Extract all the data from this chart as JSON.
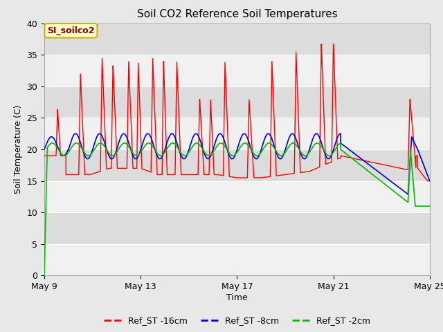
{
  "title": "Soil CO2 Reference Soil Temperatures",
  "xlabel": "Time",
  "ylabel": "Soil Temperature (C)",
  "ylim": [
    0,
    40
  ],
  "xlim_days": [
    0,
    16
  ],
  "fig_bg": "#e8e8e8",
  "plot_bg_dark": "#dcdcdc",
  "plot_bg_light": "#f0f0f0",
  "grid_color": "#ffffff",
  "annotation_label": "SI_soilco2",
  "annotation_color": "#8b0000",
  "annotation_bg": "#ffffcc",
  "annotation_edge": "#c8b400",
  "legend_entries": [
    "Ref_ST -16cm",
    "Ref_ST -8cm",
    "Ref_ST -2cm"
  ],
  "line_colors": [
    "#ff0000",
    "#0000cc",
    "#00bb00"
  ],
  "x_tick_labels": [
    "May 9",
    "May 13",
    "May 17",
    "May 21",
    "May 25"
  ],
  "x_tick_positions": [
    0,
    4,
    8,
    12,
    16
  ],
  "y_ticks": [
    0,
    5,
    10,
    15,
    20,
    25,
    30,
    35,
    40
  ],
  "title_fontsize": 11,
  "axis_fontsize": 9,
  "tick_fontsize": 9
}
